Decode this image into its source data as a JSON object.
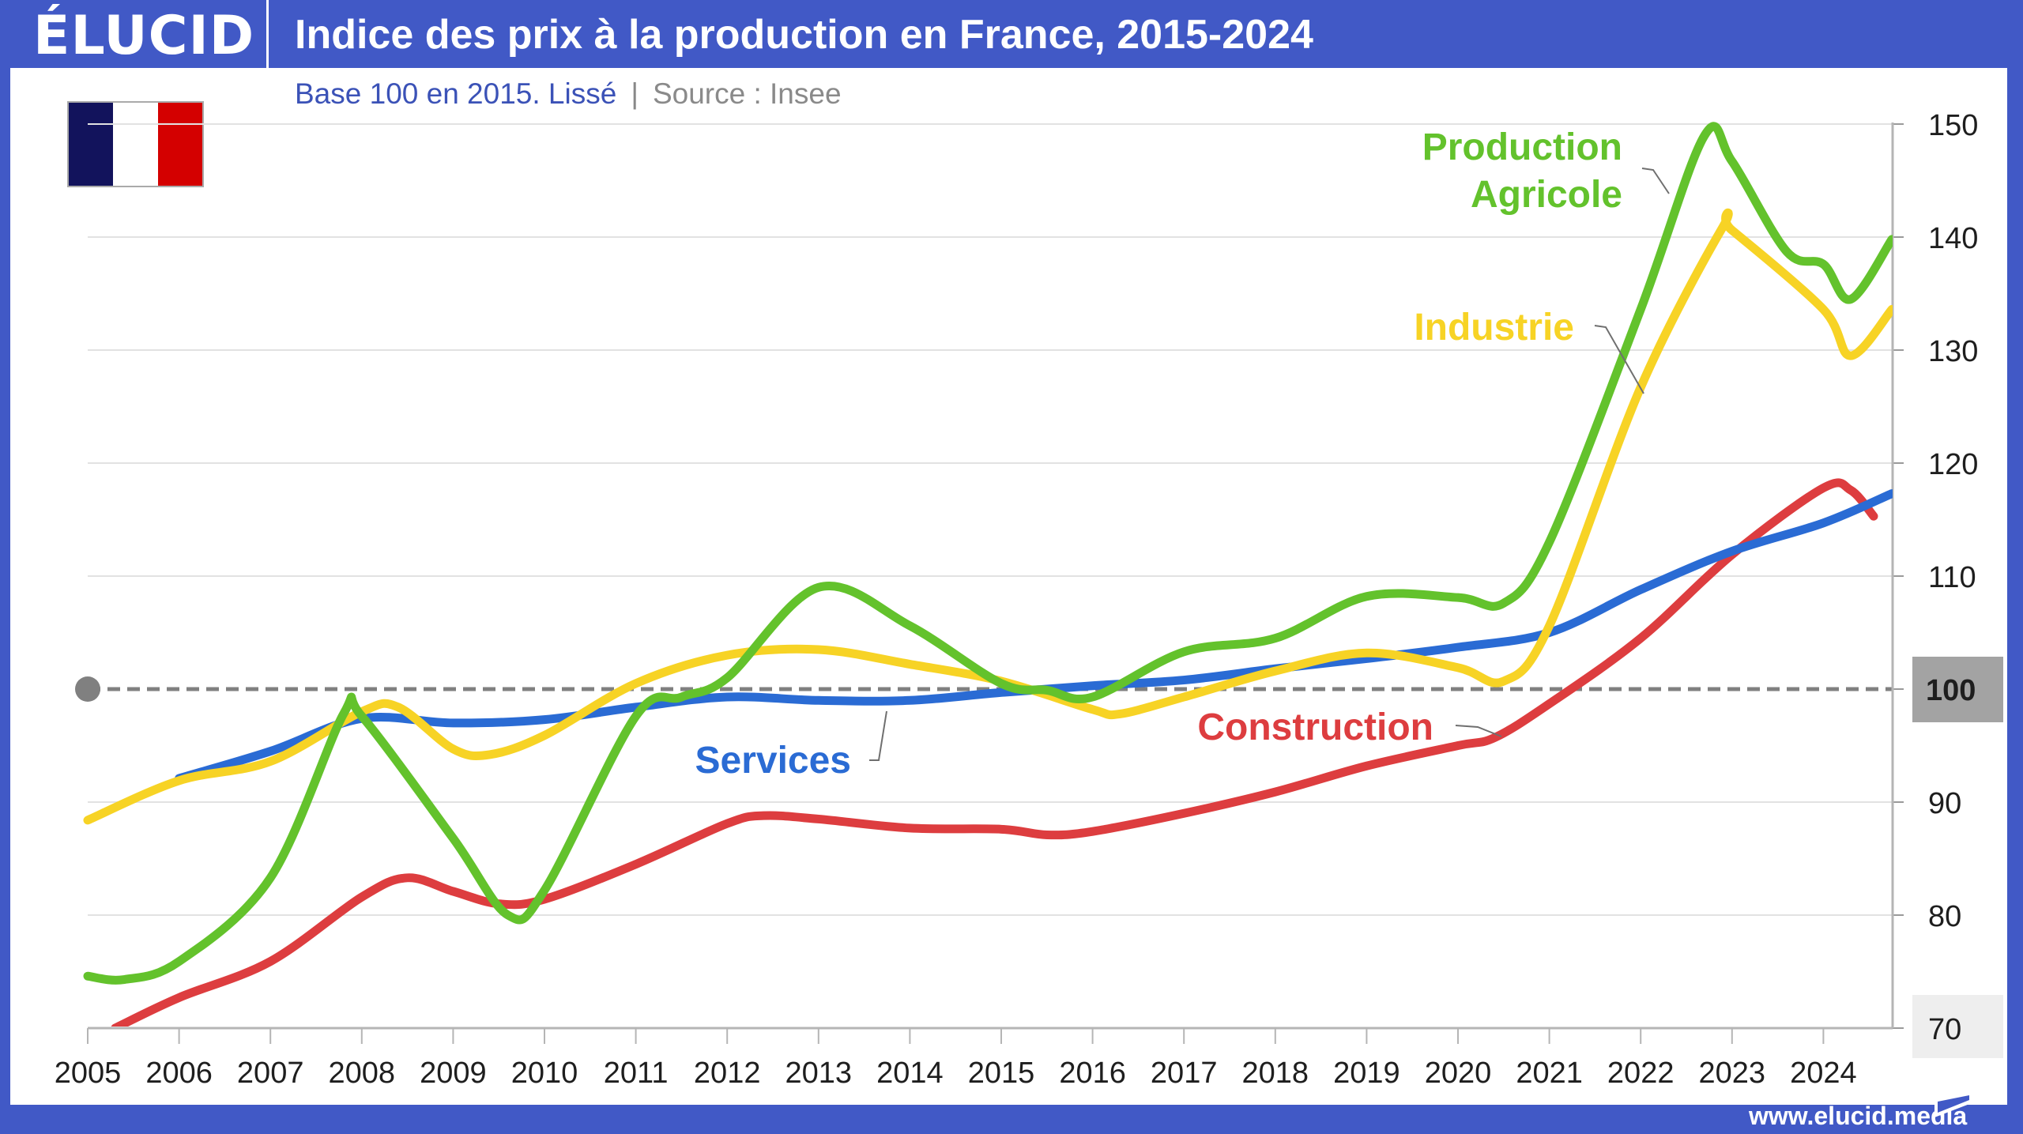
{
  "header": {
    "logo": "ÉLUCID",
    "title": "Indice des prix à la production en France, 2015-2024",
    "subtitle_base": "Base 100 en 2015. Lissé",
    "subtitle_separator": "|",
    "subtitle_source": "Source : Insee"
  },
  "flag": {
    "icon": "france-flag-icon",
    "colors": [
      "#12135c",
      "#ffffff",
      "#d40000"
    ]
  },
  "footer": {
    "url": "www.elucid.media"
  },
  "colors": {
    "header_bg": "#4159c6",
    "services": "#2a6bd4",
    "industrie": "#f7d325",
    "agricole": "#63c22c",
    "construction": "#dd3d3f",
    "baseline": "#808080"
  },
  "chart_data": {
    "type": "line",
    "title": "Indice des prix à la production en France, 2015-2024",
    "subtitle": "Base 100 en 2015. Lissé | Source : Insee",
    "xlabel": "",
    "ylabel": "",
    "xlim": [
      2005,
      2024.75
    ],
    "ylim": [
      70,
      150
    ],
    "x_ticks": [
      "2005",
      "2006",
      "2007",
      "2008",
      "2009",
      "2010",
      "2011",
      "2012",
      "2013",
      "2014",
      "2015",
      "2016",
      "2017",
      "2018",
      "2019",
      "2020",
      "2021",
      "2022",
      "2023",
      "2024"
    ],
    "y_ticks": [
      "70",
      "80",
      "90",
      "100",
      "110",
      "120",
      "130",
      "140",
      "150"
    ],
    "y_axis_position": "right",
    "grid": true,
    "reference_line": {
      "value": 100,
      "label": "100",
      "style": "dashed"
    },
    "legend": "inline-labels",
    "series": [
      {
        "name": "Services",
        "key": "services",
        "x": [
          2006,
          2007,
          2008,
          2009,
          2010,
          2011,
          2012,
          2013,
          2014,
          2015,
          2016,
          2017,
          2018,
          2019,
          2020,
          2021,
          2022,
          2023,
          2024,
          2024.75
        ],
        "values": [
          92.1,
          94.5,
          97.4,
          97.0,
          97.3,
          98.4,
          99.3,
          99.0,
          99.0,
          99.7,
          100.3,
          100.8,
          101.8,
          102.7,
          103.7,
          105.0,
          108.8,
          112.2,
          114.7,
          117.3
        ]
      },
      {
        "name": "Industrie",
        "key": "industrie",
        "x": [
          2005,
          2006,
          2007,
          2008,
          2008.4,
          2009,
          2009.4,
          2010,
          2011,
          2012,
          2013,
          2014,
          2015,
          2016,
          2016.3,
          2017,
          2018,
          2019,
          2020,
          2020.5,
          2021,
          2022,
          2022.9,
          2023,
          2024,
          2024.3,
          2024.75
        ],
        "values": [
          88.4,
          91.9,
          93.6,
          98.0,
          98.4,
          94.7,
          94.2,
          95.9,
          100.5,
          103.0,
          103.5,
          102.2,
          100.7,
          98.2,
          97.8,
          99.3,
          101.6,
          103.2,
          101.9,
          100.7,
          105.6,
          126.7,
          140.9,
          140.6,
          133.6,
          129.5,
          133.6
        ]
      },
      {
        "name": "Production Agricole",
        "key": "agricole",
        "x": [
          2005,
          2005.4,
          2006,
          2007,
          2007.8,
          2008,
          2009,
          2009.6,
          2010,
          2011,
          2011.5,
          2012,
          2013,
          2014,
          2015,
          2015.5,
          2016,
          2017,
          2018,
          2019,
          2020,
          2020.5,
          2021,
          2022,
          2022.7,
          2023,
          2023.6,
          2024,
          2024.3,
          2024.75
        ],
        "values": [
          74.6,
          74.3,
          75.9,
          83.3,
          97.8,
          97.6,
          86.8,
          80.0,
          82.2,
          97.6,
          99.3,
          101.0,
          109.0,
          105.6,
          100.5,
          99.9,
          99.3,
          103.3,
          104.5,
          108.2,
          108.1,
          107.6,
          113.0,
          133.6,
          149.0,
          146.7,
          138.7,
          137.6,
          134.5,
          139.8
        ]
      },
      {
        "name": "Construction",
        "key": "construction",
        "x": [
          2005.3,
          2006,
          2007,
          2008,
          2008.5,
          2009,
          2009.5,
          2010,
          2011,
          2012,
          2012.4,
          2013,
          2014,
          2015,
          2015.5,
          2016,
          2017,
          2018,
          2019,
          2020,
          2020.4,
          2021,
          2022,
          2023,
          2024,
          2024.3,
          2024.55
        ],
        "values": [
          70.0,
          72.7,
          75.9,
          81.6,
          83.3,
          82.1,
          81.0,
          81.4,
          84.5,
          88.1,
          88.8,
          88.5,
          87.7,
          87.6,
          87.1,
          87.4,
          89.0,
          90.9,
          93.2,
          95.0,
          95.7,
          98.7,
          104.5,
          111.9,
          117.8,
          117.6,
          115.3
        ]
      }
    ],
    "annotations": [
      {
        "series": "agricole",
        "lines": [
          "Production",
          "Agricole"
        ]
      },
      {
        "series": "industrie",
        "lines": [
          "Industrie"
        ]
      },
      {
        "series": "services",
        "lines": [
          "Services"
        ]
      },
      {
        "series": "construction",
        "lines": [
          "Construction"
        ]
      }
    ]
  }
}
